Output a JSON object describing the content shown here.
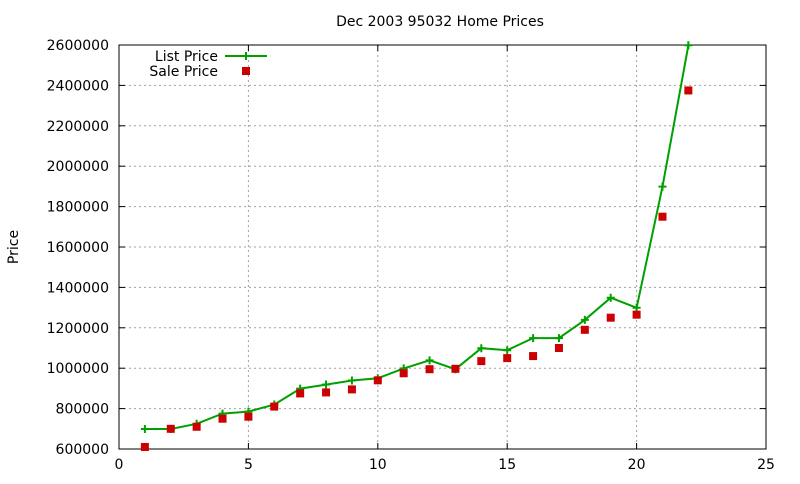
{
  "chart_data": {
    "type": "line",
    "title": "Dec 2003 95032 Home Prices",
    "xlabel": "",
    "ylabel": "Price",
    "xlim": [
      0,
      25
    ],
    "ylim": [
      600000,
      2600000
    ],
    "x_ticks": [
      0,
      5,
      10,
      15,
      20,
      25
    ],
    "y_ticks": [
      600000,
      800000,
      1000000,
      1200000,
      1400000,
      1600000,
      1800000,
      2000000,
      2200000,
      2400000,
      2600000
    ],
    "grid": true,
    "legend_position": "top-left",
    "series": [
      {
        "name": "List Price",
        "style": "line-with-plus-markers",
        "color": "#00a000",
        "x": [
          1,
          2,
          3,
          4,
          5,
          6,
          7,
          8,
          9,
          10,
          11,
          12,
          13,
          14,
          15,
          16,
          17,
          18,
          19,
          20,
          21,
          22
        ],
        "values": [
          699000,
          699000,
          725000,
          775000,
          785000,
          820000,
          899000,
          919000,
          939000,
          950000,
          999000,
          1039000,
          995000,
          1099000,
          1089000,
          1149000,
          1149000,
          1239000,
          1349000,
          1299000,
          1899000,
          2599000
        ]
      },
      {
        "name": "Sale Price",
        "style": "square-markers",
        "color": "#cc0000",
        "x": [
          1,
          2,
          3,
          4,
          5,
          6,
          7,
          8,
          9,
          10,
          11,
          12,
          13,
          14,
          15,
          16,
          17,
          18,
          19,
          20,
          21,
          22
        ],
        "values": [
          610000,
          700000,
          710000,
          750000,
          760000,
          810000,
          875000,
          880000,
          895000,
          940000,
          975000,
          995000,
          997000,
          1035000,
          1050000,
          1060000,
          1100000,
          1190000,
          1250000,
          1265000,
          1750000,
          2375000
        ]
      }
    ]
  }
}
